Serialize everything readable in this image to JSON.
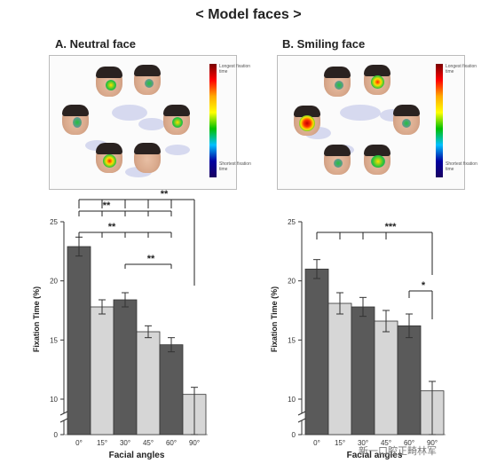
{
  "title": "< Model faces >",
  "panel_a": {
    "title": "A. Neutral face"
  },
  "panel_b": {
    "title": "B. Smiling face"
  },
  "colorbar": {
    "top_label": "Longest fixation time",
    "bottom_label": "Shortest fixation time"
  },
  "colors": {
    "dark_bar": "#5a5a5a",
    "light_bar": "#d6d6d6",
    "axis": "#333333"
  },
  "chart_data": [
    {
      "type": "bar",
      "title": "",
      "xlabel": "Facial angles",
      "ylabel": "Fixation Time (%)",
      "categories": [
        "0°",
        "15°",
        "30°",
        "45°",
        "60°",
        "90°"
      ],
      "values": [
        22.9,
        17.8,
        18.4,
        15.7,
        14.6,
        10.4
      ],
      "errors": [
        0.8,
        0.6,
        0.6,
        0.5,
        0.6,
        0.6
      ],
      "bar_shades": [
        "dark",
        "light",
        "dark",
        "light",
        "dark",
        "light"
      ],
      "ylim": [
        0,
        25
      ],
      "yticks": [
        0,
        10,
        15,
        20,
        25
      ],
      "axis_break": true,
      "significance": [
        {
          "label": "**",
          "groups": [
            [
              0
            ],
            [
              1,
              2,
              3,
              4
            ]
          ]
        },
        {
          "label": "**",
          "groups": [
            [
              0
            ],
            [
              1,
              2,
              3,
              4
            ]
          ]
        },
        {
          "label": "**",
          "groups": [
            [
              2
            ],
            [
              4
            ]
          ]
        },
        {
          "label": "**",
          "groups": [
            [
              0,
              1,
              2,
              3,
              4
            ],
            [
              5
            ]
          ]
        }
      ]
    },
    {
      "type": "bar",
      "title": "",
      "xlabel": "Facial angles",
      "ylabel": "Fixation Time (%)",
      "categories": [
        "0°",
        "15°",
        "30°",
        "45°",
        "60°",
        "90°"
      ],
      "values": [
        21.0,
        18.1,
        17.8,
        16.6,
        16.2,
        10.7
      ],
      "errors": [
        0.8,
        0.9,
        0.8,
        0.9,
        1.0,
        0.8
      ],
      "bar_shades": [
        "dark",
        "light",
        "dark",
        "light",
        "dark",
        "light"
      ],
      "ylim": [
        0,
        25
      ],
      "yticks": [
        0,
        10,
        15,
        20,
        25
      ],
      "axis_break": true,
      "significance": [
        {
          "label": "***",
          "groups": [
            [
              0,
              1,
              2,
              3
            ],
            [
              5
            ]
          ]
        },
        {
          "label": "*",
          "groups": [
            [
              4
            ],
            [
              5
            ]
          ]
        }
      ]
    }
  ],
  "watermark": "新一口腔正畸林军"
}
